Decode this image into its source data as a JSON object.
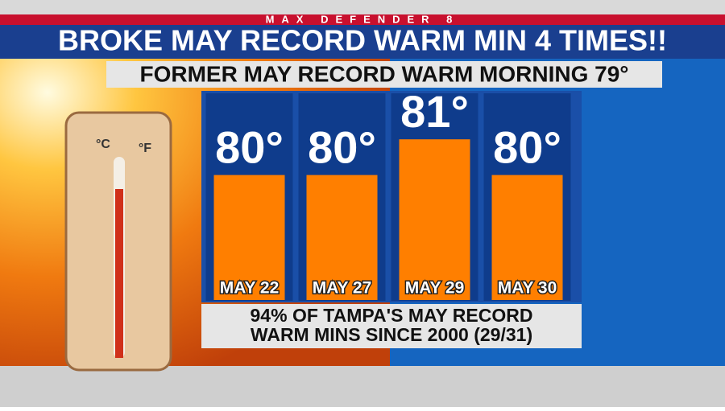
{
  "header": "MAX DEFENDER 8",
  "chart_data": {
    "type": "bar",
    "title": "BROKE MAY RECORD WARM MIN 4 TIMES!!",
    "subtitle": "FORMER MAY RECORD WARM MORNING 79°",
    "categories": [
      "MAY 22",
      "MAY 27",
      "MAY 29",
      "MAY 30"
    ],
    "values": [
      80,
      80,
      81,
      80
    ],
    "value_labels": [
      "80°",
      "80°",
      "81°",
      "80°"
    ],
    "color": "#ff7f00",
    "ylim": [
      76.5,
      81.5
    ],
    "annotations": [
      "94% OF TAMPA'S MAY RECORD",
      "WARM MINS SINCE 2000 (29/31)"
    ]
  }
}
